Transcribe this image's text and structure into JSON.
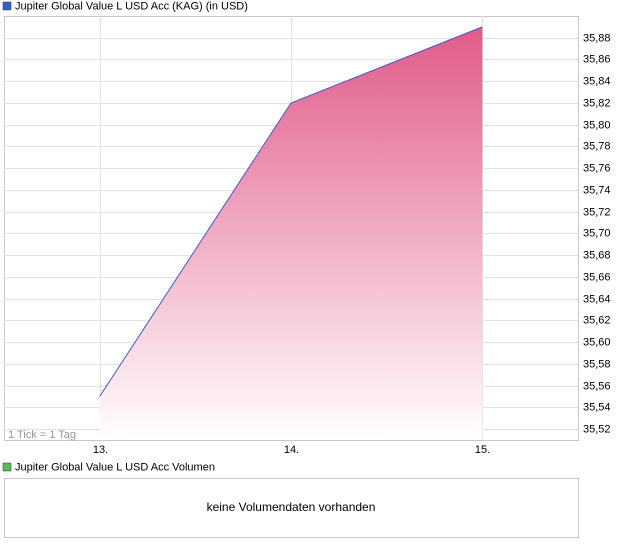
{
  "chart_data": {
    "type": "area",
    "categories": [
      "13.",
      "14.",
      "15."
    ],
    "series": [
      {
        "name": "Jupiter Global Value L USD Acc (KAG) (in USD)",
        "color": "#3a5fcd",
        "fill_color": "#e05a8a",
        "values": [
          35.55,
          35.82,
          35.89
        ]
      }
    ],
    "ylim": [
      35.51,
      35.9
    ],
    "yticks": [
      {
        "value": 35.52,
        "label": "35,52"
      },
      {
        "value": 35.54,
        "label": "35,54"
      },
      {
        "value": 35.56,
        "label": "35,56"
      },
      {
        "value": 35.58,
        "label": "35,58"
      },
      {
        "value": 35.6,
        "label": "35,60"
      },
      {
        "value": 35.62,
        "label": "35,62"
      },
      {
        "value": 35.64,
        "label": "35,64"
      },
      {
        "value": 35.66,
        "label": "35,66"
      },
      {
        "value": 35.68,
        "label": "35,68"
      },
      {
        "value": 35.7,
        "label": "35,70"
      },
      {
        "value": 35.72,
        "label": "35,72"
      },
      {
        "value": 35.74,
        "label": "35,74"
      },
      {
        "value": 35.76,
        "label": "35,76"
      },
      {
        "value": 35.78,
        "label": "35,78"
      },
      {
        "value": 35.8,
        "label": "35,80"
      },
      {
        "value": 35.82,
        "label": "35,82"
      },
      {
        "value": 35.84,
        "label": "35,84"
      },
      {
        "value": 35.86,
        "label": "35,86"
      },
      {
        "value": 35.88,
        "label": "35,88"
      }
    ],
    "grid": true,
    "annotation": "1 Tick = 1 Tag"
  },
  "volume_panel": {
    "title": "Jupiter Global Value L USD Acc Volumen",
    "color": "#55bb55",
    "message": "keine Volumendaten vorhanden"
  }
}
